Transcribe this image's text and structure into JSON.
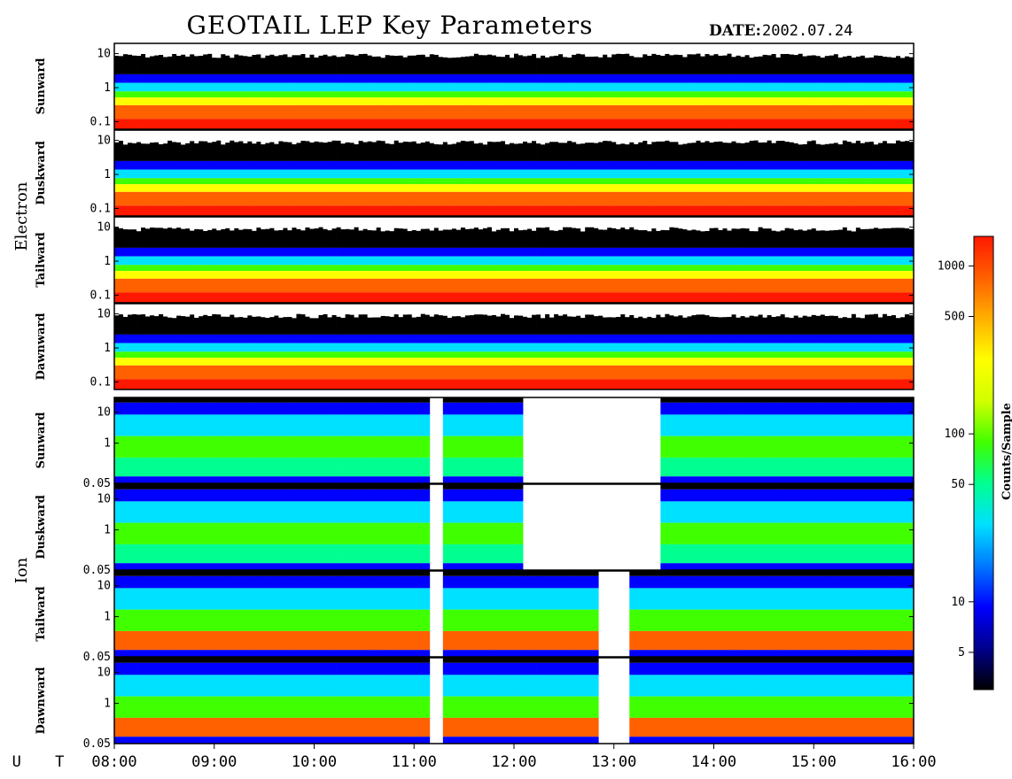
{
  "header": {
    "title": "GEOTAIL LEP Key Parameters",
    "date_label": "DATE:",
    "date_value": "2002.07.24"
  },
  "chart_data": {
    "type": "heatmap",
    "x_axis": {
      "label": "U T",
      "range": [
        "08:00",
        "16:00"
      ],
      "ticks": [
        "08:00",
        "09:00",
        "10:00",
        "11:00",
        "12:00",
        "13:00",
        "14:00",
        "15:00",
        "16:00"
      ]
    },
    "groups": [
      {
        "name": "Electron",
        "panels": [
          {
            "label": "Sunward",
            "y_ticks": [
              "10",
              "1",
              "0.1"
            ],
            "y_scale": "log"
          },
          {
            "label": "Duskward",
            "y_ticks": [
              "10",
              "1",
              "0.1"
            ],
            "y_scale": "log"
          },
          {
            "label": "Tailward",
            "y_ticks": [
              "10",
              "1",
              "0.1"
            ],
            "y_scale": "log"
          },
          {
            "label": "Dawnward",
            "y_ticks": [
              "10",
              "1",
              "0.1"
            ],
            "y_scale": "log"
          }
        ]
      },
      {
        "name": "Ion",
        "panels": [
          {
            "label": "Sunward",
            "y_ticks": [
              "10",
              "1",
              "0.05"
            ],
            "y_scale": "log"
          },
          {
            "label": "Duskward",
            "y_ticks": [
              "10",
              "1",
              "0.05"
            ],
            "y_scale": "log"
          },
          {
            "label": "Tailward",
            "y_ticks": [
              "10",
              "1",
              "0.05"
            ],
            "y_scale": "log"
          },
          {
            "label": "Dawnward",
            "y_ticks": [
              "10",
              "1",
              "0.05"
            ],
            "y_scale": "log"
          }
        ]
      }
    ],
    "colorbar": {
      "label": "Counts/Sample",
      "scale": "log",
      "ticks": [
        "1000",
        "500",
        "100",
        "50",
        "10",
        "5"
      ],
      "tick_values": [
        1000,
        500,
        100,
        50,
        10,
        5
      ],
      "range": [
        3,
        1500
      ],
      "colors": [
        "#000000",
        "#00008c",
        "#0000ff",
        "#0078ff",
        "#00e0ff",
        "#00ff90",
        "#40ff00",
        "#d0ff00",
        "#ffff00",
        "#ffb000",
        "#ff6000",
        "#ff1800"
      ]
    }
  }
}
